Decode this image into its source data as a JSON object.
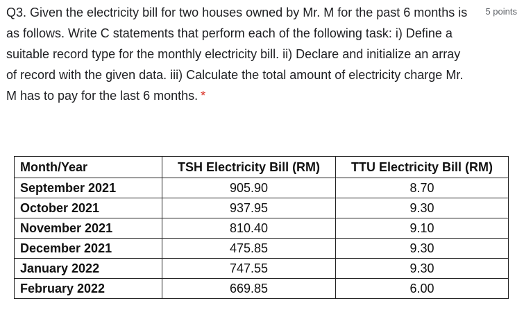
{
  "question": {
    "text": "Q3. Given the electricity bill for two houses owned by Mr. M for the past 6 months is as follows. Write C statements that perform each of the following task: i) Define a suitable record type for the monthly electricity bill. ii) Declare and initialize an array of record with the given data. iii) Calculate the total amount of electricity charge Mr. M has to pay for the last 6 months.",
    "required_marker": "*",
    "points": "5 points"
  },
  "table": {
    "headers": {
      "month": "Month/Year",
      "tsh": "TSH Electricity Bill (RM)",
      "ttu": "TTU Electricity Bill (RM)"
    },
    "rows": [
      {
        "month": "September 2021",
        "tsh": "905.90",
        "ttu": "8.70"
      },
      {
        "month": "October 2021",
        "tsh": "937.95",
        "ttu": "9.30"
      },
      {
        "month": "November 2021",
        "tsh": "810.40",
        "ttu": "9.10"
      },
      {
        "month": "December 2021",
        "tsh": "475.85",
        "ttu": "9.30"
      },
      {
        "month": "January 2022",
        "tsh": "747.55",
        "ttu": "9.30"
      },
      {
        "month": "February 2022",
        "tsh": "669.85",
        "ttu": "6.00"
      }
    ]
  }
}
